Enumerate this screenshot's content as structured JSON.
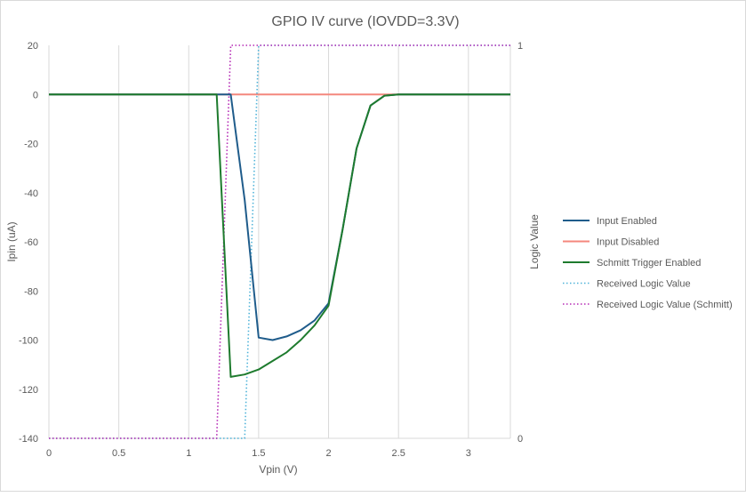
{
  "chart_data": {
    "type": "line",
    "title": "GPIO IV curve (IOVDD=3.3V)",
    "xlabel": "Vpin (V)",
    "ylabel": "Ipin (uA)",
    "y2label": "Logic Value",
    "xlim": [
      0,
      3.3
    ],
    "ylim": [
      -140,
      20
    ],
    "y2lim": [
      0,
      1
    ],
    "x_ticks": [
      "0",
      "0.5",
      "1",
      "1.5",
      "2",
      "2.5",
      "3"
    ],
    "y_ticks": [
      "20",
      "0",
      "-20",
      "-40",
      "-60",
      "-80",
      "-100",
      "-120",
      "-140"
    ],
    "y2_ticks": [
      "1",
      "0"
    ],
    "grid": "vertical",
    "legend_position": "right",
    "series": [
      {
        "name": "Input Enabled",
        "axis": "primary",
        "color": "#1f5c8b",
        "style": "solid",
        "x": [
          0,
          1.0,
          1.2,
          1.3,
          1.4,
          1.5,
          1.6,
          1.7,
          1.8,
          1.9,
          2.0,
          2.1,
          2.2,
          2.3,
          2.4,
          2.5,
          3.3
        ],
        "y": [
          0,
          0,
          0,
          0,
          -43,
          -99,
          -100,
          -98.5,
          -96,
          -92,
          -85,
          -55,
          -22,
          -4.5,
          -0.5,
          0,
          0
        ]
      },
      {
        "name": "Input Disabled",
        "axis": "primary",
        "color": "#f4877d",
        "style": "solid",
        "x": [
          0,
          3.3
        ],
        "y": [
          0,
          0
        ]
      },
      {
        "name": "Schmitt Trigger Enabled",
        "axis": "primary",
        "color": "#1e7b2e",
        "style": "solid",
        "x": [
          0,
          1.0,
          1.2,
          1.3,
          1.4,
          1.5,
          1.6,
          1.7,
          1.8,
          1.9,
          2.0,
          2.1,
          2.2,
          2.3,
          2.4,
          2.5,
          3.3
        ],
        "y": [
          0,
          0,
          0,
          -115,
          -114,
          -112,
          -108.5,
          -105,
          -100,
          -94,
          -86,
          -55,
          -22,
          -4.5,
          -0.5,
          0,
          0
        ]
      },
      {
        "name": "Received Logic Value",
        "axis": "secondary",
        "color": "#4fb3d9",
        "style": "dotted",
        "x": [
          0,
          1.4,
          1.5,
          3.3
        ],
        "y": [
          0,
          0,
          1,
          1
        ]
      },
      {
        "name": "Received Logic Value (Schmitt)",
        "axis": "secondary",
        "color": "#b52ab5",
        "style": "dotted",
        "x": [
          0,
          1.2,
          1.3,
          3.3
        ],
        "y": [
          0,
          0,
          1,
          1
        ]
      }
    ]
  }
}
